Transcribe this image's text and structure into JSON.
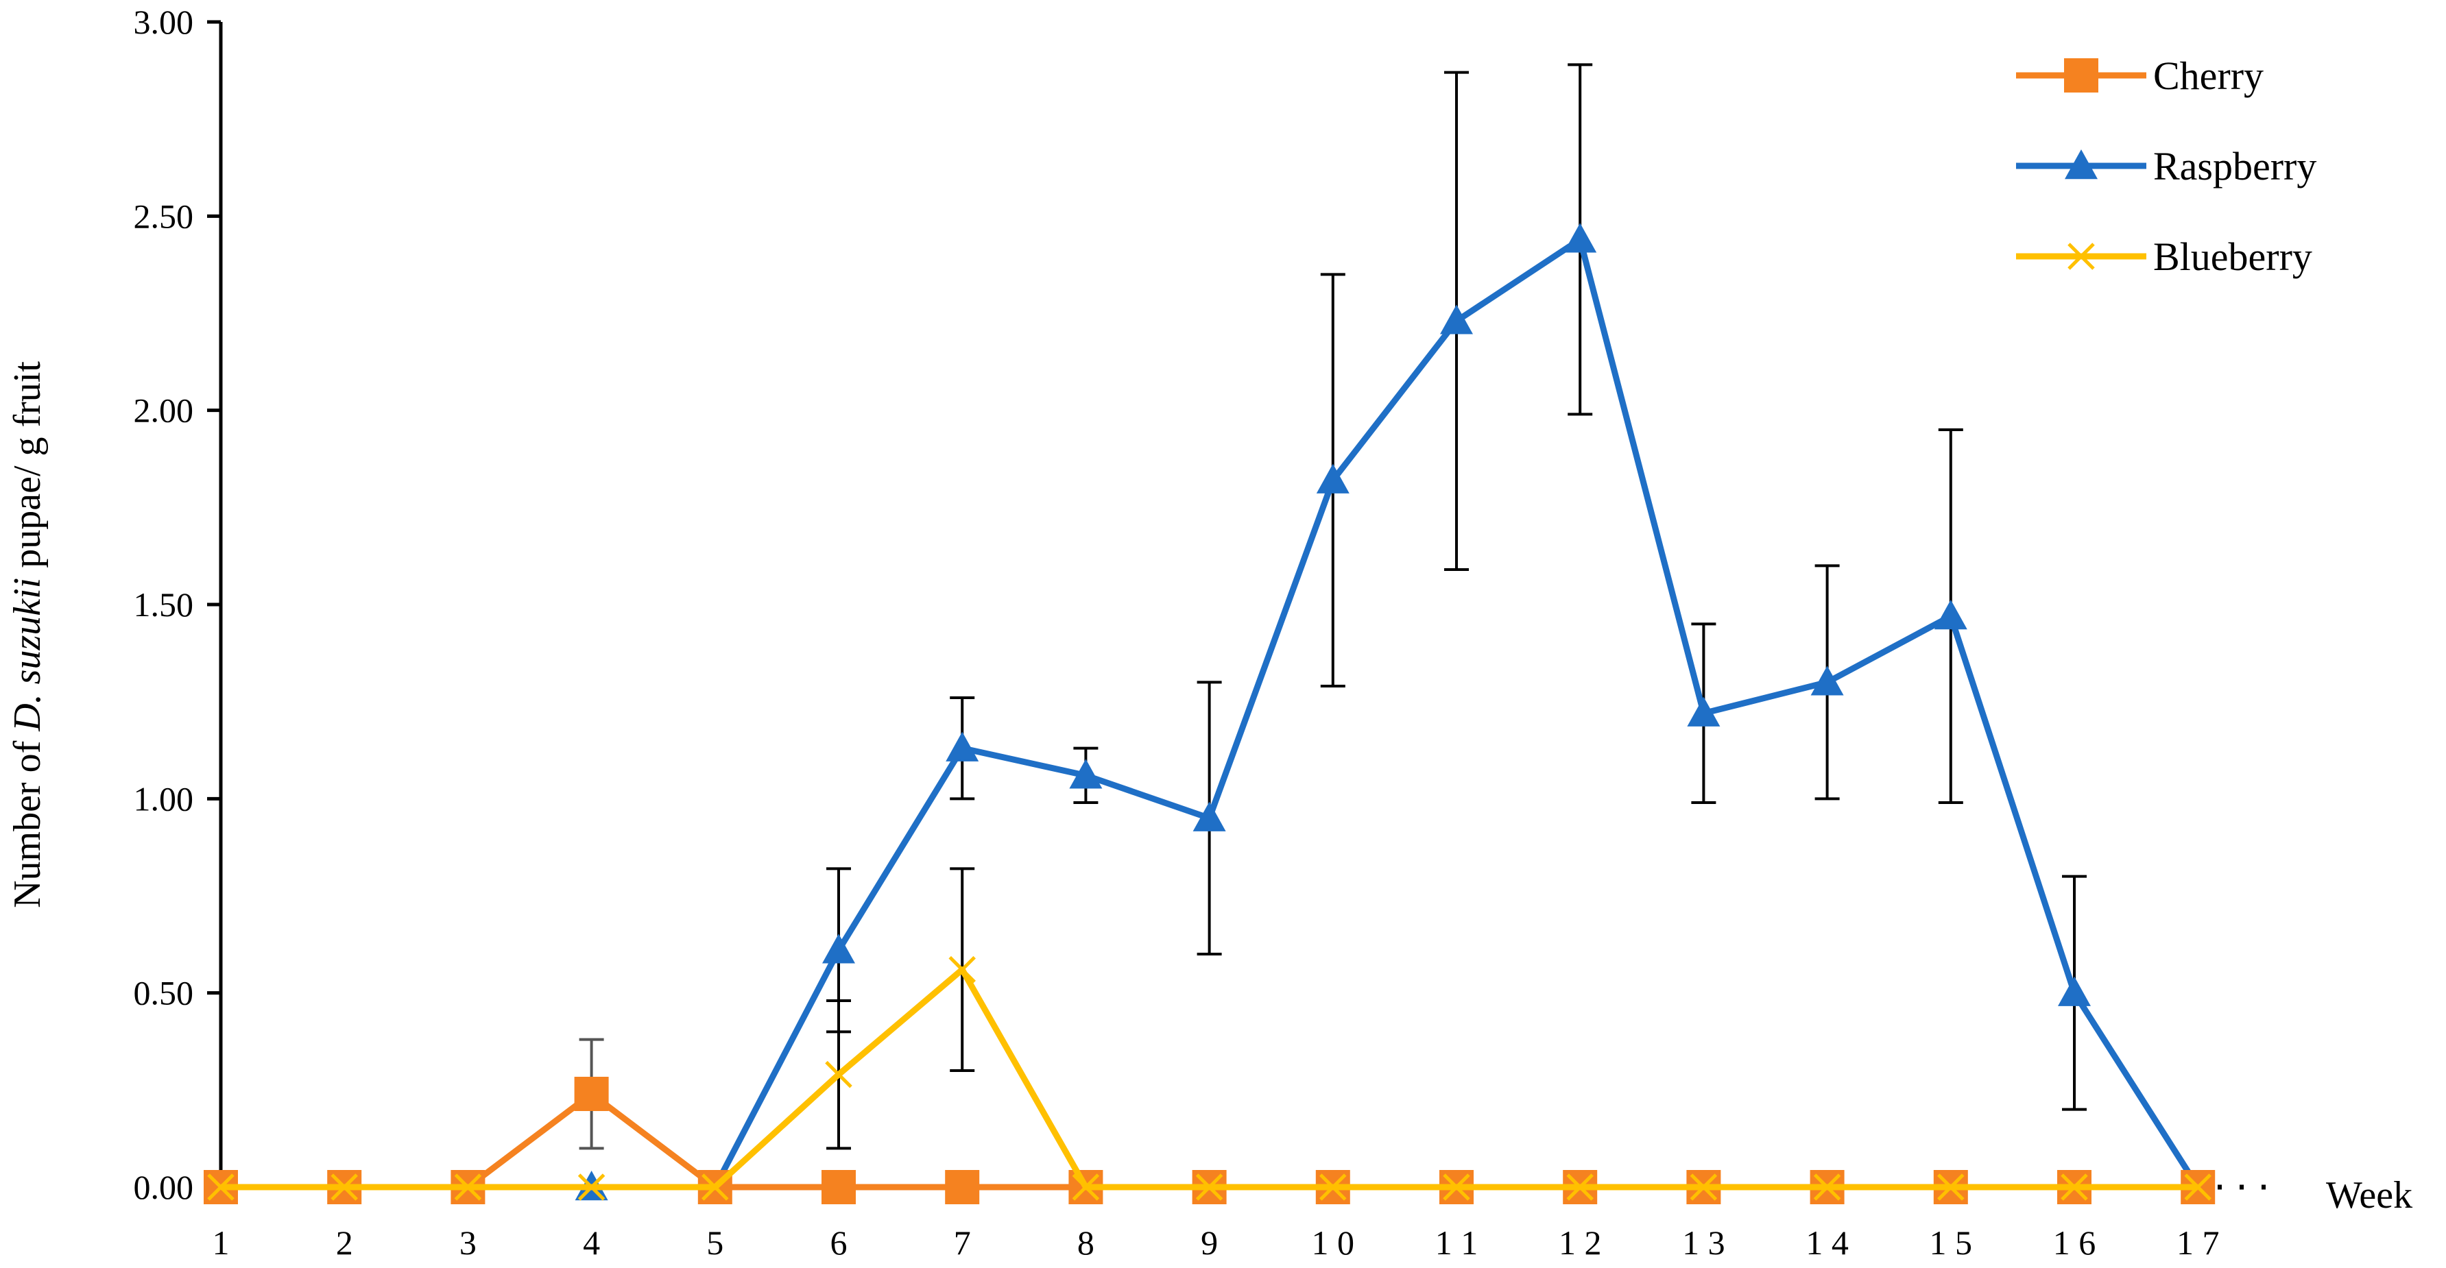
{
  "chart_data": {
    "type": "line",
    "title": "",
    "xlabel": "Week",
    "ylabel_prefix": "Number of ",
    "ylabel_italic": "D. suzukii",
    "ylabel_suffix": " pupae/ g fruit",
    "x": [
      1,
      2,
      3,
      4,
      5,
      6,
      7,
      8,
      9,
      10,
      11,
      12,
      13,
      14,
      15,
      16,
      17
    ],
    "x_tick_labels": [
      "1",
      "2",
      "3",
      "4",
      "5",
      "6",
      "7",
      "8",
      "9",
      "1 0",
      "1 1",
      "1 2",
      "1 3",
      "1 4",
      "1 5",
      "1 6",
      "1 7"
    ],
    "ylim": [
      0,
      3
    ],
    "y_ticks": [
      0,
      0.5,
      1.0,
      1.5,
      2.0,
      2.5,
      3.0
    ],
    "y_tick_labels": [
      "0.00",
      "0.50",
      "1.00",
      "1.50",
      "2.00",
      "2.50",
      "3.00"
    ],
    "grid": false,
    "legend_position": "top-right",
    "series": [
      {
        "name": "Raspberry",
        "color": "#1f6fc6",
        "marker": "triangle",
        "values": [
          0,
          0,
          0,
          0,
          0,
          0.61,
          1.13,
          1.06,
          0.95,
          1.82,
          2.23,
          2.44,
          1.22,
          1.3,
          1.47,
          0.5,
          0
        ],
        "error": [
          0,
          0,
          0,
          0,
          0,
          0.21,
          0.13,
          0.07,
          0.35,
          0.53,
          0.64,
          0.45,
          0.23,
          0.3,
          0.48,
          0.3,
          0
        ]
      },
      {
        "name": "Cherry",
        "color": "#f58220",
        "marker": "square",
        "values": [
          0,
          0,
          0,
          0.24,
          0,
          0,
          0,
          0,
          0,
          0,
          0,
          0,
          0,
          0,
          0,
          0,
          0
        ],
        "error": [
          0,
          0,
          0,
          0.14,
          0,
          0,
          0,
          0,
          0,
          0,
          0,
          0,
          0,
          0,
          0,
          0,
          0
        ]
      },
      {
        "name": "Blueberry",
        "color": "#ffc000",
        "marker": "x",
        "values": [
          0,
          0,
          0,
          0,
          0,
          0.29,
          0.56,
          0,
          0,
          0,
          0,
          0,
          0,
          0,
          0,
          0,
          0
        ],
        "error": [
          0,
          0,
          0,
          0,
          0,
          0.19,
          0.26,
          0,
          0,
          0,
          0,
          0,
          0,
          0,
          0,
          0,
          0
        ]
      }
    ],
    "legend_order": [
      "Cherry",
      "Raspberry",
      "Blueberry"
    ]
  }
}
